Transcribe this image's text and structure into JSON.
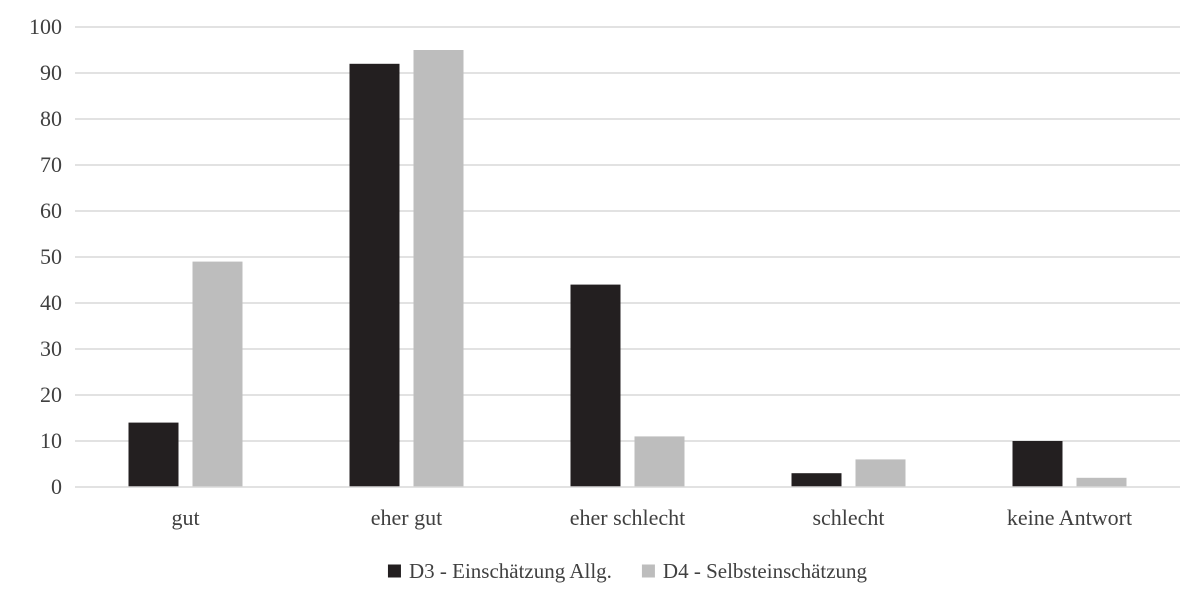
{
  "chart_data": {
    "type": "bar",
    "title": "",
    "xlabel": "",
    "ylabel": "",
    "categories": [
      "gut",
      "eher gut",
      "eher schlecht",
      "schlecht",
      "keine Antwort"
    ],
    "series": [
      {
        "name": "D3 - Einschätzung Allg.",
        "values": [
          14,
          92,
          44,
          3,
          10
        ],
        "color": "#231f20"
      },
      {
        "name": "D4 - Selbsteinschätzung",
        "values": [
          49,
          95,
          11,
          6,
          2
        ],
        "color": "#bdbdbd"
      }
    ],
    "ylim": [
      0,
      100
    ],
    "yticks": [
      0,
      10,
      20,
      30,
      40,
      50,
      60,
      70,
      80,
      90,
      100
    ],
    "grid": true,
    "legend_position": "bottom-center"
  }
}
